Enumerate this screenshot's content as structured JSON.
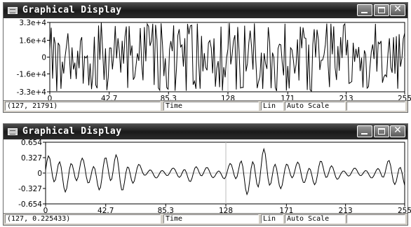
{
  "windows": [
    {
      "title": "Graphical Display",
      "y_ticks": [
        "3.3e+4",
        "1.6e+4",
        "0",
        "-1.6e+4",
        "-3.3e+4"
      ],
      "x_ticks": [
        "0",
        "42.7",
        "85.3",
        "128",
        "171",
        "213",
        "255"
      ],
      "status": {
        "coord": "(127, 21791)",
        "x_name": "Time",
        "scale_type": "Lin",
        "scale_mode": "Auto Scale",
        "extra": ""
      }
    },
    {
      "title": "Graphical Display",
      "y_ticks": [
        "0.654",
        "0.327",
        "0",
        "-0.327",
        "-0.654"
      ],
      "x_ticks": [
        "0",
        "42.7",
        "85.3",
        "128",
        "171",
        "213",
        "255"
      ],
      "status": {
        "coord": "(127, 0.225433)",
        "x_name": "Time",
        "scale_type": "Lin",
        "scale_mode": "Auto Scale",
        "extra": ""
      }
    }
  ],
  "chart_data": [
    {
      "type": "line",
      "title": "Graphical Display",
      "xlabel": "Time",
      "xlim": [
        0,
        255
      ],
      "ylim": [
        -33000,
        33000
      ],
      "x_ticks": [
        0,
        42.7,
        85.3,
        128,
        171,
        213,
        255
      ],
      "y_ticks": [
        33000,
        16000,
        0,
        -16000,
        -33000
      ],
      "grid": "center cross at x=128, y=0",
      "description_signal": "dense noise-like samples spanning full range",
      "series": [
        {
          "values": []
        }
      ]
    },
    {
      "type": "line",
      "title": "Graphical Display",
      "xlabel": "Time",
      "xlim": [
        0,
        255
      ],
      "ylim": [
        -0.654,
        0.654
      ],
      "x_ticks": [
        0,
        42.7,
        85.3,
        128,
        171,
        213,
        255
      ],
      "y_ticks": [
        0.654,
        0.327,
        0,
        -0.327,
        -0.654
      ],
      "grid": "center cross at x=128, y=0",
      "series": [
        {
          "values": []
        }
      ]
    }
  ]
}
